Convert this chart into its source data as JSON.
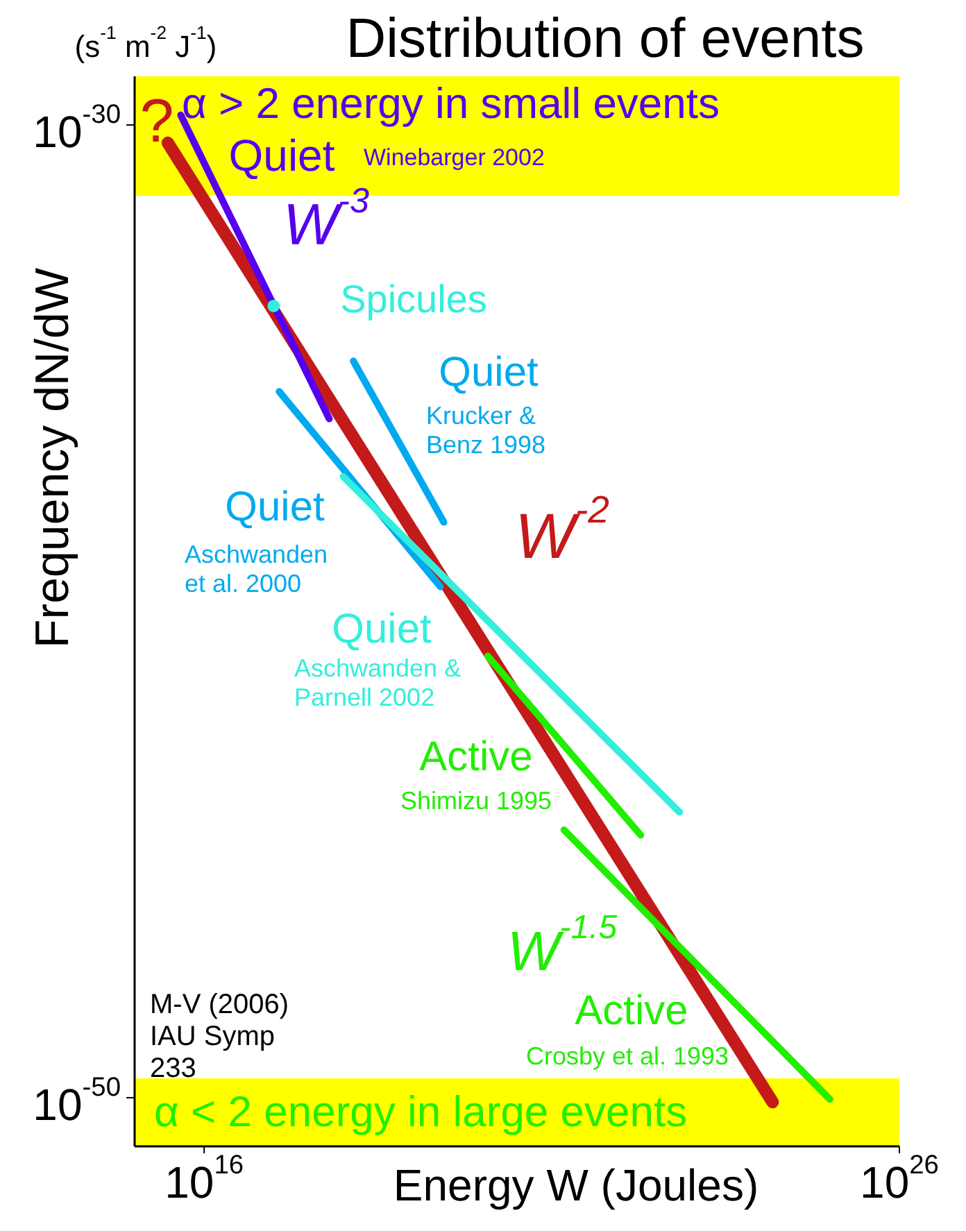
{
  "chart_data": {
    "type": "line",
    "title": "Distribution of events",
    "xlabel": "Energy W (Joules)",
    "ylabel": "Frequency dN/dW",
    "log": "xy",
    "xlim": [
      1000000000000000.0,
      1e+26
    ],
    "ylim": [
      1e-51,
      1e-29
    ],
    "xticks": [
      {
        "value": 1e+16,
        "label": "10$^{16}$"
      },
      {
        "value": 1e+26,
        "label": "10$^{26}$"
      }
    ],
    "yticks": [
      {
        "value": 1e-30,
        "label": "10$^{-30}$"
      },
      {
        "value": 1e-50,
        "label": "10$^{-50}$"
      }
    ],
    "series": [
      {
        "color": "#c41a1a",
        "x": [
          3000000000000000.0,
          1.5e+24
        ],
        "values": [
          4.3e-31,
          8.1e-51
        ]
      },
      {
        "color": "#5500ee",
        "x": [
          4600000000000000.0,
          6.3e+17
        ],
        "values": [
          1.6e-30,
          9.1e-37
        ]
      },
      {
        "color": "#00aaee",
        "x": [
          1.4e+18,
          2.8e+19
        ],
        "values": [
          1.4e-35,
          6.8e-39
        ]
      },
      {
        "color": "#00aaee",
        "x": [
          1.2e+17,
          2.5e+19
        ],
        "values": [
          3.3e-36,
          3.2e-40
        ]
      },
      {
        "color": "#33eedd",
        "x": [
          1e+18,
          6.9e+22
        ],
        "values": [
          5.9e-38,
          7.4e-45
        ]
      },
      {
        "type": "scatter",
        "marker": "circle",
        "color": "#33eedd",
        "x": [
          1e+17
        ],
        "values": [
          1.9e-34
        ]
      },
      {
        "color": "#22ee00",
        "x": [
          1.2e+20,
          1.9e+22
        ],
        "values": [
          1.2e-41,
          2.5e-45
        ]
      },
      {
        "color": "#22ee00",
        "x": [
          1.5e+21,
          1e+25
        ],
        "values": [
          3.2e-45,
          9.3e-51
        ]
      }
    ],
    "bands": [
      {
        "axis": "y",
        "from": 3.5e-32,
        "to": 1e-29,
        "color": "#ffff00",
        "label": "α > 2   energy in small events"
      },
      {
        "axis": "y",
        "from": 1e-51,
        "to": 2.5e-50,
        "color": "#ffff00",
        "label": "α < 2   energy in large events"
      }
    ],
    "annotations": [
      "(s$^{-1}$ m$^{-2}$ J$^{-1}$)",
      "?",
      "Quiet",
      "Winebarger 2002",
      "W$^{-3}$",
      "Spicules",
      "Quiet",
      "Krucker &\nBenz 1998",
      "Quiet",
      "Aschwanden\net al. 2000",
      "W$^{-2}$",
      "Quiet",
      "Aschwanden &\nParnell 2002",
      "Active",
      "Shimizu 1995",
      "W$^{-1.5}$",
      "Active",
      "Crosby et al. 1993",
      "M-V (2006)\nIAU Symp\n233"
    ]
  }
}
